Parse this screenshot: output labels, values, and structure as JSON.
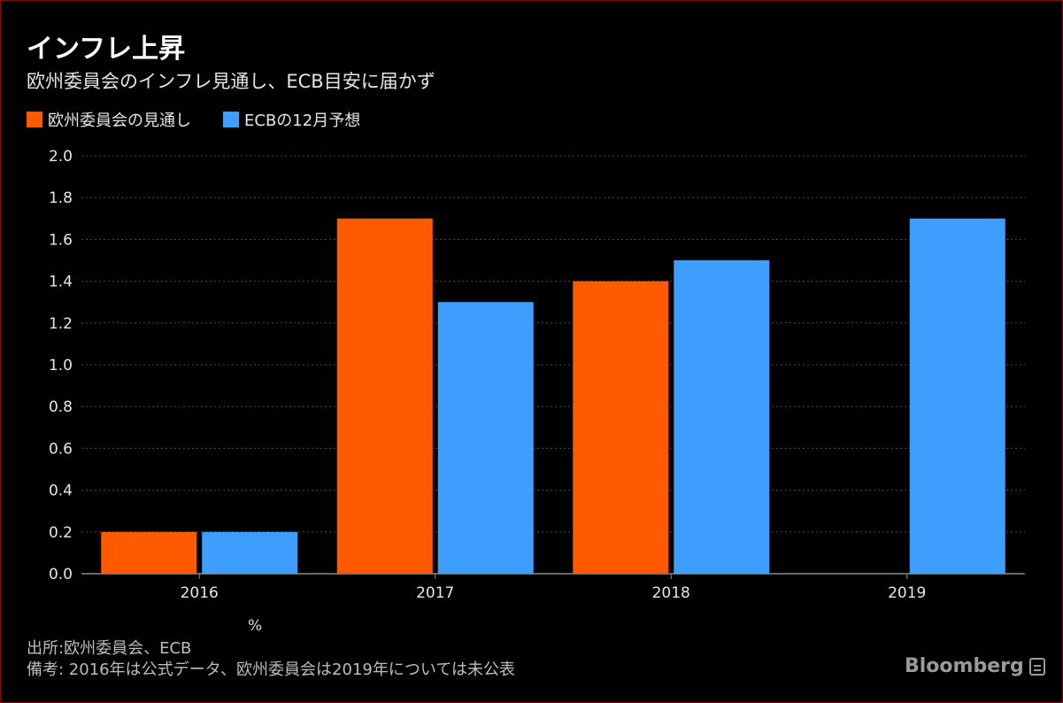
{
  "title": "インフレ上昇",
  "subtitle": "欧州委員会のインフレ見通し、ECB目安に届かず",
  "unit_label": "%",
  "source": "出所:欧州委員会、ECB",
  "note": "備考: 2016年は公式データ、欧州委員会は2019年については未公表",
  "logo": "Bloomberg",
  "chart_data": {
    "type": "bar",
    "categories": [
      "2016",
      "2017",
      "2018",
      "2019"
    ],
    "series": [
      {
        "name": "欧州委員会の見通し",
        "color": "#ff5a00",
        "values": [
          0.2,
          1.7,
          1.4,
          null
        ]
      },
      {
        "name": "ECBの12月予想",
        "color": "#3d9eff",
        "values": [
          0.2,
          1.3,
          1.5,
          1.7
        ]
      }
    ],
    "ylim": [
      0,
      2.0
    ],
    "yticks": [
      "0.0",
      "0.2",
      "0.4",
      "0.6",
      "0.8",
      "1.0",
      "1.2",
      "1.4",
      "1.6",
      "1.8",
      "2.0"
    ],
    "grid": true,
    "legend_position": "top-left"
  }
}
